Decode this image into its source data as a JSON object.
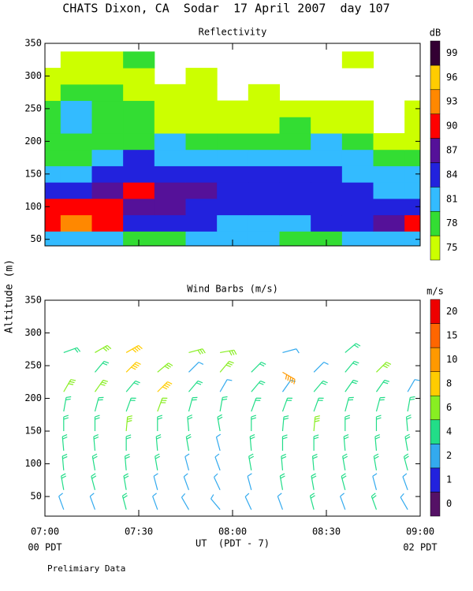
{
  "title": "CHATS Dixon, CA  Sodar  17 April 2007  day 107",
  "y_axis_label": "Altitude (m)",
  "x_axis_label": "UT  (PDT - 7)",
  "left_time_note": "00 PDT",
  "right_time_note": "02 PDT",
  "footnote": "Prelimiary Data",
  "chart_data": [
    {
      "type": "contour",
      "title": "Reflectivity",
      "x": [
        0,
        10,
        20,
        30,
        40,
        50,
        60,
        70,
        80,
        90,
        100,
        110,
        120
      ],
      "altitudes": [
        50,
        75,
        100,
        125,
        150,
        175,
        200,
        225,
        250,
        275,
        300,
        325
      ],
      "z": [
        [
          81,
          81,
          81,
          78,
          78,
          81,
          81,
          81,
          78,
          78,
          81,
          81,
          81
        ],
        [
          90,
          93,
          90,
          84,
          84,
          84,
          81,
          81,
          81,
          84,
          84,
          87,
          90
        ],
        [
          90,
          90,
          90,
          87,
          87,
          84,
          84,
          84,
          84,
          84,
          84,
          84,
          84
        ],
        [
          84,
          84,
          87,
          90,
          87,
          87,
          84,
          84,
          84,
          84,
          84,
          81,
          81
        ],
        [
          81,
          81,
          84,
          84,
          84,
          84,
          84,
          84,
          84,
          84,
          81,
          81,
          81
        ],
        [
          78,
          78,
          81,
          84,
          81,
          81,
          81,
          81,
          81,
          81,
          81,
          78,
          78
        ],
        [
          78,
          78,
          78,
          78,
          81,
          78,
          78,
          78,
          78,
          81,
          78,
          75,
          75
        ],
        [
          78,
          81,
          78,
          78,
          75,
          75,
          75,
          75,
          78,
          75,
          75,
          null,
          75
        ],
        [
          78,
          81,
          78,
          78,
          75,
          75,
          75,
          75,
          75,
          75,
          75,
          null,
          75
        ],
        [
          75,
          78,
          78,
          75,
          75,
          75,
          null,
          75,
          null,
          null,
          null,
          null,
          null
        ],
        [
          75,
          75,
          75,
          75,
          null,
          75,
          null,
          null,
          null,
          null,
          null,
          null,
          null
        ],
        [
          null,
          75,
          75,
          78,
          null,
          null,
          null,
          null,
          null,
          null,
          75,
          null,
          null
        ]
      ],
      "xlim": [
        0,
        120
      ],
      "ylim": [
        40,
        350
      ],
      "xticks": [
        {
          "value": 0,
          "label": "07:00"
        },
        {
          "value": 30,
          "label": "07:30"
        },
        {
          "value": 60,
          "label": "08:00"
        },
        {
          "value": 90,
          "label": "08:30"
        },
        {
          "value": 120,
          "label": "09:00"
        }
      ],
      "yticks": [
        50,
        100,
        150,
        200,
        250,
        300,
        350
      ],
      "colorbar": {
        "title": "dB",
        "levels": [
          75,
          78,
          81,
          84,
          87,
          90,
          93,
          96,
          99
        ],
        "colors": [
          "#ccff00",
          "#33dd33",
          "#33bbff",
          "#2222dd",
          "#551199",
          "#ff0000",
          "#ff8800",
          "#ffcc00",
          "#330033"
        ]
      }
    },
    {
      "type": "barbs",
      "title": "Wind Barbs (m/s)",
      "x": [
        6,
        16,
        26,
        36,
        46,
        56,
        66,
        76,
        86,
        96,
        106,
        116
      ],
      "altitudes": [
        30,
        60,
        90,
        120,
        150,
        180,
        210,
        240,
        270
      ],
      "speed": [
        [
          3,
          3,
          4,
          3,
          2,
          2,
          3,
          3,
          4,
          3,
          4,
          3
        ],
        [
          4,
          4,
          4,
          3,
          3,
          2,
          3,
          4,
          4,
          4,
          3,
          3
        ],
        [
          4,
          4,
          5,
          4,
          3,
          3,
          4,
          4,
          5,
          5,
          4,
          4
        ],
        [
          4,
          5,
          5,
          5,
          4,
          3,
          4,
          5,
          5,
          5,
          5,
          4
        ],
        [
          5,
          5,
          6,
          5,
          5,
          4,
          5,
          5,
          6,
          5,
          5,
          4
        ],
        [
          4,
          5,
          5,
          6,
          5,
          4,
          5,
          5,
          5,
          5,
          5,
          4
        ],
        [
          6,
          6,
          5,
          8,
          5,
          2,
          5,
          3,
          5,
          4,
          5,
          2
        ],
        [
          null,
          5,
          8,
          6,
          2,
          7,
          5,
          10,
          3,
          5,
          6,
          null
        ],
        [
          4,
          7,
          8,
          null,
          6,
          7,
          null,
          3,
          null,
          5,
          null,
          null
        ]
      ],
      "direction": [
        [
          340,
          340,
          345,
          340,
          330,
          320,
          335,
          340,
          345,
          340,
          340,
          330
        ],
        [
          350,
          345,
          350,
          345,
          340,
          335,
          345,
          350,
          350,
          345,
          345,
          340
        ],
        [
          355,
          350,
          355,
          350,
          345,
          340,
          350,
          355,
          355,
          350,
          350,
          345
        ],
        [
          355,
          355,
          0,
          355,
          350,
          345,
          355,
          0,
          0,
          355,
          355,
          350
        ],
        [
          0,
          0,
          5,
          0,
          355,
          350,
          0,
          5,
          5,
          0,
          0,
          355
        ],
        [
          10,
          15,
          20,
          20,
          15,
          10,
          20,
          20,
          20,
          15,
          15,
          10
        ],
        [
          30,
          35,
          40,
          45,
          40,
          30,
          40,
          35,
          40,
          35,
          35,
          30
        ],
        [
          null,
          40,
          45,
          50,
          45,
          40,
          45,
          120,
          45,
          40,
          45,
          null
        ],
        [
          70,
          60,
          60,
          null,
          75,
          80,
          null,
          75,
          null,
          50,
          null,
          null
        ]
      ],
      "xlim": [
        0,
        120
      ],
      "ylim": [
        20,
        350
      ],
      "xticks": [
        {
          "value": 0,
          "label": "07:00"
        },
        {
          "value": 30,
          "label": "07:30"
        },
        {
          "value": 60,
          "label": "08:00"
        },
        {
          "value": 90,
          "label": "08:30"
        },
        {
          "value": 120,
          "label": "09:00"
        }
      ],
      "yticks": [
        50,
        100,
        150,
        200,
        250,
        300,
        350
      ],
      "colorbar": {
        "title": "m/s",
        "levels": [
          0,
          1,
          2,
          4,
          6,
          8,
          10,
          15,
          20
        ],
        "colors": [
          "#551166",
          "#2222dd",
          "#33aaee",
          "#22dd88",
          "#88ee22",
          "#ffcc00",
          "#ff9900",
          "#ff6600",
          "#ee0000"
        ]
      }
    }
  ]
}
